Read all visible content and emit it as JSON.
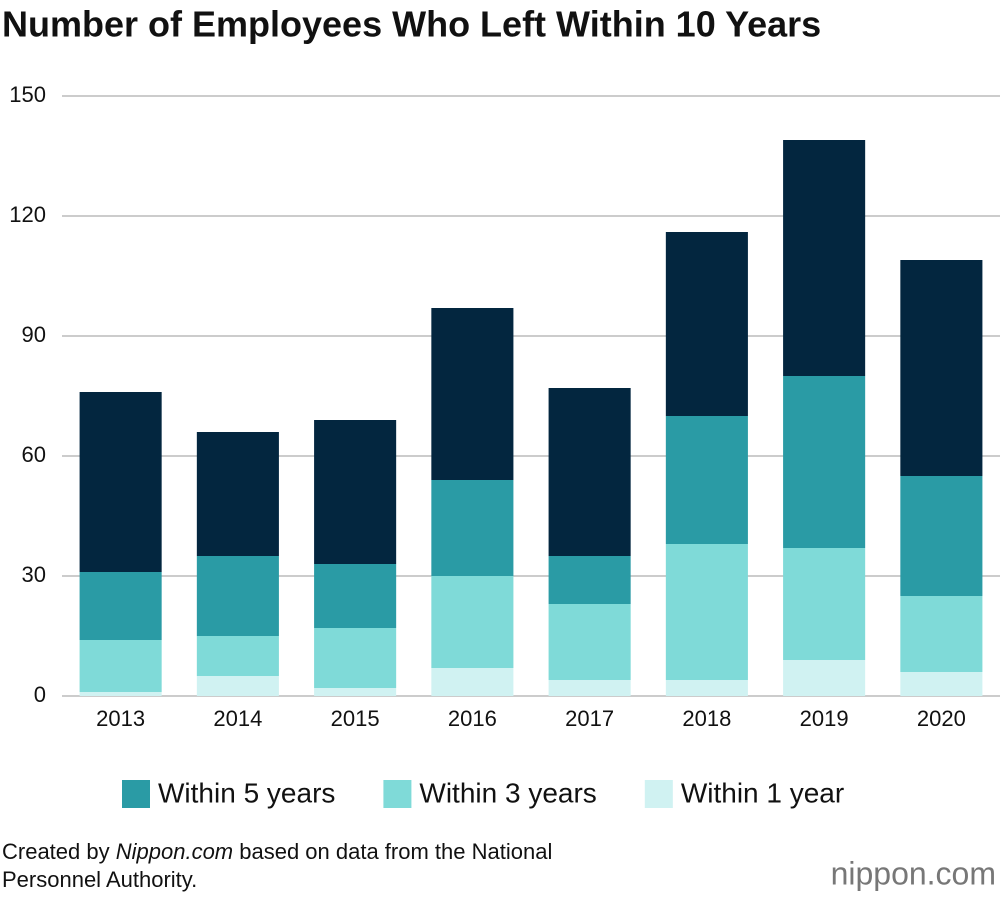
{
  "chart_data": {
    "type": "stacked-bar",
    "title": "Number of Employees Who Left Within 10 Years",
    "categories": [
      "2013",
      "2014",
      "2015",
      "2016",
      "2017",
      "2018",
      "2019",
      "2020"
    ],
    "series": [
      {
        "name": "Within 1 year",
        "color": "#d0f2f2",
        "values": [
          1,
          5,
          2,
          7,
          4,
          4,
          9,
          6
        ]
      },
      {
        "name": "Within 3 years",
        "color": "#7fdad8",
        "values": [
          13,
          10,
          15,
          23,
          19,
          34,
          28,
          19
        ]
      },
      {
        "name": "Within 5 years",
        "color": "#2a9ba5",
        "values": [
          17,
          20,
          16,
          24,
          12,
          32,
          43,
          30
        ]
      },
      {
        "color": "#03263f",
        "values": [
          45,
          31,
          36,
          43,
          42,
          46,
          59,
          54
        ]
      }
    ],
    "ylim": [
      0,
      150
    ],
    "yticks": [
      0,
      30,
      60,
      90,
      120,
      150
    ],
    "grid": true,
    "legend": "bottom",
    "footnote": [
      "Created by ",
      "Nippon.com",
      " based on data from the National Personnel Authority."
    ],
    "logo": "nippon.com"
  }
}
